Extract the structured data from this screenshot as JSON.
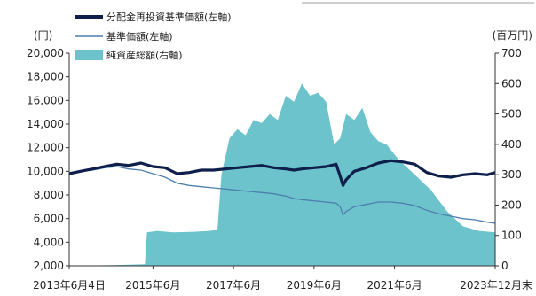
{
  "chart_data": {
    "type": "line+area",
    "left_axis": {
      "unit": "(円)",
      "ylim": [
        2000,
        20000
      ],
      "ticks": [
        "20,000",
        "18,000",
        "16,000",
        "14,000",
        "12,000",
        "10,000",
        "8,000",
        "6,000",
        "4,000",
        "2,000"
      ]
    },
    "right_axis": {
      "unit": "(百万円)",
      "ylim": [
        0,
        700
      ],
      "ticks": [
        "700",
        "600",
        "500",
        "400",
        "300",
        "200",
        "100",
        "0"
      ]
    },
    "x_ticks": [
      "2013年6月4日",
      "2015年6月",
      "2017年6月",
      "2019年6月",
      "2021年6月",
      "2023年12月末"
    ],
    "x_tick_years": [
      2013.42,
      2015.5,
      2017.5,
      2019.5,
      2021.5,
      2024.0
    ],
    "xlim": [
      2013.42,
      2024.0
    ],
    "legend": {
      "reinvested": "分配金再投資基準価額(左軸)",
      "nav": "基準価額(左軸)",
      "assets": "純資産総額(右軸)"
    },
    "colors": {
      "reinvested": "#0f1f4b",
      "nav": "#4e7fae",
      "assets": "#6cc3cc"
    },
    "series": [
      {
        "name": "分配金再投資基準価額(左軸)",
        "axis": "left",
        "x": [
          2013.42,
          2013.7,
          2014.0,
          2014.3,
          2014.6,
          2014.9,
          2015.2,
          2015.5,
          2015.8,
          2016.1,
          2016.4,
          2016.7,
          2017.0,
          2017.3,
          2017.6,
          2017.9,
          2018.2,
          2018.5,
          2018.8,
          2019.0,
          2019.2,
          2019.5,
          2019.8,
          2020.05,
          2020.15,
          2020.22,
          2020.3,
          2020.5,
          2020.8,
          2021.1,
          2021.4,
          2021.7,
          2022.0,
          2022.3,
          2022.6,
          2022.9,
          2023.2,
          2023.5,
          2023.8,
          2024.0
        ],
        "y": [
          9800,
          10000,
          10200,
          10400,
          10600,
          10500,
          10700,
          10400,
          10300,
          9800,
          9900,
          10100,
          10100,
          10200,
          10300,
          10400,
          10500,
          10300,
          10200,
          10100,
          10200,
          10300,
          10400,
          10600,
          9600,
          8800,
          9300,
          10000,
          10300,
          10700,
          10900,
          10800,
          10600,
          9900,
          9600,
          9500,
          9700,
          9800,
          9700,
          9900
        ]
      },
      {
        "name": "基準価額(左軸)",
        "axis": "left",
        "x": [
          2013.42,
          2013.7,
          2014.0,
          2014.3,
          2014.6,
          2014.9,
          2015.2,
          2015.5,
          2015.8,
          2016.1,
          2016.4,
          2016.7,
          2017.0,
          2017.3,
          2017.6,
          2017.9,
          2018.2,
          2018.5,
          2018.8,
          2019.0,
          2019.2,
          2019.5,
          2019.8,
          2020.05,
          2020.15,
          2020.22,
          2020.3,
          2020.5,
          2020.8,
          2021.1,
          2021.4,
          2021.7,
          2022.0,
          2022.3,
          2022.6,
          2022.9,
          2023.2,
          2023.5,
          2023.8,
          2024.0
        ],
        "y": [
          9800,
          10000,
          10100,
          10300,
          10400,
          10200,
          10100,
          9800,
          9500,
          9000,
          8800,
          8700,
          8600,
          8500,
          8400,
          8300,
          8200,
          8100,
          7900,
          7700,
          7600,
          7500,
          7400,
          7300,
          7000,
          6300,
          6600,
          7000,
          7200,
          7400,
          7400,
          7300,
          7100,
          6700,
          6400,
          6200,
          6000,
          5900,
          5700,
          5600
        ]
      },
      {
        "name": "純資産総額(右軸)",
        "axis": "right",
        "x": [
          2013.42,
          2014.5,
          2015.3,
          2015.35,
          2015.6,
          2016.0,
          2016.5,
          2016.9,
          2017.1,
          2017.2,
          2017.4,
          2017.6,
          2017.8,
          2018.0,
          2018.2,
          2018.4,
          2018.6,
          2018.8,
          2019.0,
          2019.2,
          2019.4,
          2019.6,
          2019.8,
          2020.0,
          2020.15,
          2020.3,
          2020.5,
          2020.7,
          2020.9,
          2021.1,
          2021.3,
          2021.6,
          2022.0,
          2022.4,
          2022.8,
          2023.2,
          2023.6,
          2024.0
        ],
        "y": [
          0,
          2,
          5,
          110,
          115,
          110,
          112,
          115,
          118,
          300,
          420,
          450,
          430,
          480,
          470,
          500,
          480,
          560,
          540,
          600,
          560,
          570,
          540,
          400,
          420,
          500,
          480,
          520,
          440,
          410,
          400,
          350,
          300,
          250,
          180,
          130,
          115,
          110
        ]
      }
    ]
  }
}
